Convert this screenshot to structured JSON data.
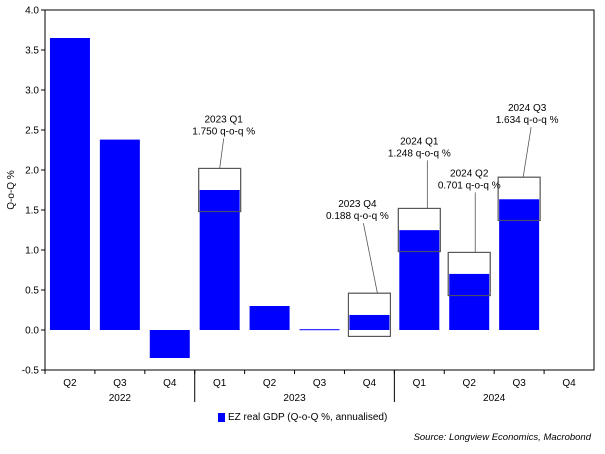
{
  "chart_data": {
    "type": "bar",
    "ylabel": "Q-o-Q %",
    "ylim": [
      -0.5,
      4.0
    ],
    "yticks": [
      "4.0",
      "3.5",
      "3.0",
      "2.5",
      "2.0",
      "1.5",
      "1.0",
      "0.5",
      "0.0",
      "-0.5"
    ],
    "ytick_values": [
      4.0,
      3.5,
      3.0,
      2.5,
      2.0,
      1.5,
      1.0,
      0.5,
      0.0,
      -0.5
    ],
    "categories": [
      "Q2",
      "Q3",
      "Q4",
      "Q1",
      "Q2",
      "Q3",
      "Q4",
      "Q1",
      "Q2",
      "Q3",
      "Q4"
    ],
    "years": [
      {
        "label": "2022",
        "start": 0,
        "end": 2
      },
      {
        "label": "2023",
        "start": 3,
        "end": 6
      },
      {
        "label": "2024",
        "start": 7,
        "end": 10
      }
    ],
    "series": [
      {
        "name": "EZ real GDP (Q-o-Q %, annualised)",
        "values": [
          3.65,
          2.38,
          -0.35,
          1.75,
          0.3,
          0.01,
          0.188,
          1.248,
          0.701,
          1.634,
          null
        ]
      }
    ],
    "ranges": [
      {
        "index": 3,
        "low": 1.48,
        "high": 2.02
      },
      {
        "index": 6,
        "low": -0.08,
        "high": 0.46
      },
      {
        "index": 7,
        "low": 0.98,
        "high": 1.52
      },
      {
        "index": 8,
        "low": 0.43,
        "high": 0.97
      },
      {
        "index": 9,
        "low": 1.37,
        "high": 1.91
      }
    ],
    "annotations": [
      {
        "index": 3,
        "line1": "2023 Q1",
        "line2": "1.750 q-o-q %"
      },
      {
        "index": 6,
        "line1": "2023 Q4",
        "line2": "0.188 q-o-q %"
      },
      {
        "index": 7,
        "line1": "2024 Q1",
        "line2": "1.248 q-o-q %"
      },
      {
        "index": 8,
        "line1": "2024 Q2",
        "line2": "0.701 q-o-q %"
      },
      {
        "index": 9,
        "line1": "2024 Q3",
        "line2": "1.634 q-o-q %"
      }
    ],
    "grid": false,
    "legend_position": "bottom-center",
    "colors": {
      "bar": "#0000ff",
      "range_border": "#555555",
      "range_fill": "#ffffff",
      "axis": "#000000"
    }
  },
  "source": "Source: Longview Economics, Macrobond"
}
